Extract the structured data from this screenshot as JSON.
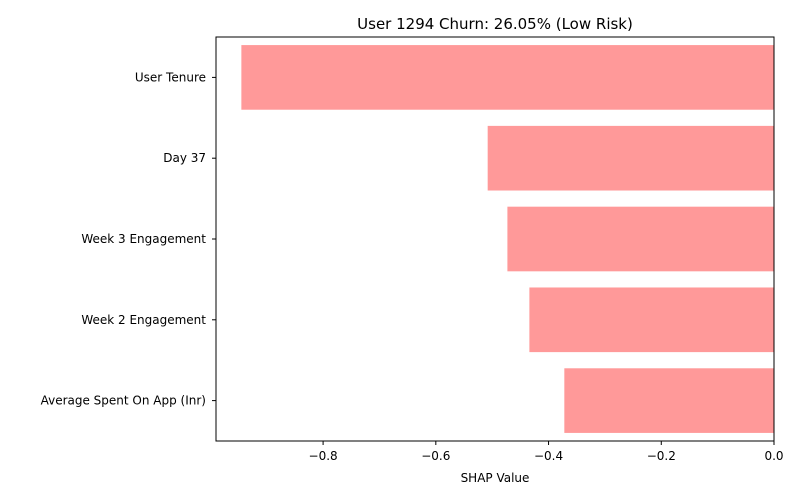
{
  "chart_data": {
    "type": "bar",
    "orientation": "horizontal",
    "title": "User 1294 Churn: 26.05% (Low Risk)",
    "xlabel": "SHAP Value",
    "ylabel": "",
    "categories": [
      "User Tenure",
      "Day 37",
      "Week 3 Engagement",
      "Week 2 Engagement",
      "Average Spent On App (Inr)"
    ],
    "values": [
      -0.945,
      -0.508,
      -0.473,
      -0.434,
      -0.372
    ],
    "xlim": [
      -0.99,
      0.0
    ],
    "xticks": [
      -0.8,
      -0.6,
      -0.4,
      -0.2,
      0.0
    ],
    "xtick_labels": [
      "−0.8",
      "−0.6",
      "−0.4",
      "−0.2",
      "0.0"
    ],
    "bar_color": "#ff9999",
    "grid": false,
    "legend": "none"
  }
}
